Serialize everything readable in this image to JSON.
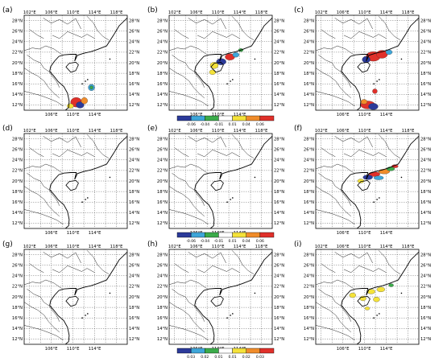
{
  "panels": [
    {
      "label": "(a)",
      "row": 0,
      "col": 0,
      "blobs": "a"
    },
    {
      "label": "(b)",
      "row": 0,
      "col": 1,
      "blobs": "b"
    },
    {
      "label": "(c)",
      "row": 0,
      "col": 2,
      "blobs": "c"
    },
    {
      "label": "(d)",
      "row": 1,
      "col": 0,
      "blobs": "none"
    },
    {
      "label": "(e)",
      "row": 1,
      "col": 1,
      "blobs": "none"
    },
    {
      "label": "(f)",
      "row": 1,
      "col": 2,
      "blobs": "f"
    },
    {
      "label": "(g)",
      "row": 2,
      "col": 0,
      "blobs": "none"
    },
    {
      "label": "(h)",
      "row": 2,
      "col": 1,
      "blobs": "none"
    },
    {
      "label": "(i)",
      "row": 2,
      "col": 2,
      "blobs": "i"
    }
  ],
  "map": {
    "lon_ticks": [
      "102°E",
      "106°E",
      "110°E",
      "114°E",
      "118°E"
    ],
    "lon_ticks_bottom": [
      "106°E",
      "110°E",
      "114°E"
    ],
    "lat_ticks": [
      "28°N",
      "26°N",
      "24°N",
      "22°N",
      "20°N",
      "18°N",
      "16°N",
      "14°N",
      "12°N"
    ],
    "lon_range": [
      101,
      120
    ],
    "lat_range": [
      11,
      29
    ]
  },
  "colorbars": [
    {
      "row": 0,
      "labels": [
        "-0.06",
        "-0.04",
        "-0.01",
        "0.01",
        "0.04",
        "0.06"
      ]
    },
    {
      "row": 1,
      "labels": [
        "-0.06",
        "-0.04",
        "-0.01",
        "0.01",
        "0.04",
        "0.06"
      ]
    },
    {
      "row": 2,
      "labels": [
        "0.03",
        "0.02",
        "0.01",
        "0.01",
        "0.02",
        "0.03"
      ]
    }
  ],
  "colors": {
    "scale": [
      "#2b3a9a",
      "#3ea6d9",
      "#3bab4a",
      "#ffffff",
      "#f4e23a",
      "#f08c2a",
      "#e0302a"
    ],
    "land_line": "#000000",
    "grid": "#555555"
  }
}
